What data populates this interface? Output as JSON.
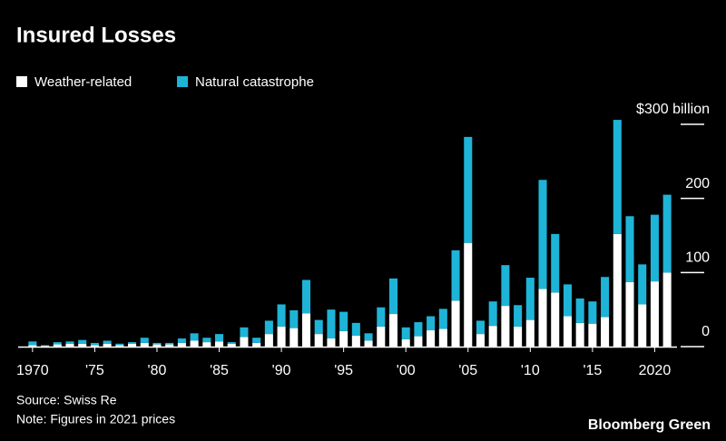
{
  "chart_data": {
    "type": "stacked-bar",
    "title": "Insured Losses",
    "source": "Source: Swiss Re",
    "note": "Note: Figures in 2021 prices",
    "brand": "Bloomberg Green",
    "x": [
      1970,
      1971,
      1972,
      1973,
      1974,
      1975,
      1976,
      1977,
      1978,
      1979,
      1980,
      1981,
      1982,
      1983,
      1984,
      1985,
      1986,
      1987,
      1988,
      1989,
      1990,
      1991,
      1992,
      1993,
      1994,
      1995,
      1996,
      1997,
      1998,
      1999,
      2000,
      2001,
      2002,
      2003,
      2004,
      2005,
      2006,
      2007,
      2008,
      2009,
      2010,
      2011,
      2012,
      2013,
      2014,
      2015,
      2016,
      2017,
      2018,
      2019,
      2020,
      2021
    ],
    "series": [
      {
        "name": "Weather-related",
        "color": "#ffffff",
        "values": [
          2,
          1,
          3,
          4,
          4,
          2,
          4,
          2,
          4,
          5,
          3,
          3,
          5,
          8,
          6,
          7,
          4,
          13,
          5,
          17,
          27,
          25,
          45,
          17,
          11,
          21,
          15,
          8,
          27,
          44,
          10,
          14,
          22,
          24,
          62,
          140,
          17,
          28,
          55,
          27,
          36,
          78,
          73,
          41,
          32,
          31,
          40,
          152,
          87,
          57,
          88,
          100
        ]
      },
      {
        "name": "Natural catastrophe",
        "color": "#1eb4d8",
        "values": [
          5,
          1,
          3,
          3,
          5,
          3,
          4,
          2,
          2,
          7,
          2,
          2,
          6,
          10,
          6,
          10,
          2,
          13,
          7,
          18,
          30,
          24,
          45,
          19,
          39,
          26,
          17,
          10,
          26,
          48,
          16,
          19,
          19,
          27,
          68,
          143,
          18,
          33,
          55,
          29,
          57,
          147,
          79,
          43,
          33,
          30,
          54,
          154,
          89,
          54,
          90,
          105
        ]
      }
    ],
    "xlim": [
      1969.5,
      2021.5
    ],
    "xticks": [
      {
        "value": 1970,
        "label": "1970"
      },
      {
        "value": 1975,
        "label": "'75"
      },
      {
        "value": 1980,
        "label": "'80"
      },
      {
        "value": 1985,
        "label": "'85"
      },
      {
        "value": 1990,
        "label": "'90"
      },
      {
        "value": 1995,
        "label": "'95"
      },
      {
        "value": 2000,
        "label": "'00"
      },
      {
        "value": 2005,
        "label": "'05"
      },
      {
        "value": 2010,
        "label": "'10"
      },
      {
        "value": 2015,
        "label": "'15"
      },
      {
        "value": 2020,
        "label": "2020"
      }
    ],
    "ylim": [
      0,
      300
    ],
    "yticks": [
      0,
      100,
      200,
      {
        "value": 300,
        "label": "$300 billion"
      }
    ]
  }
}
